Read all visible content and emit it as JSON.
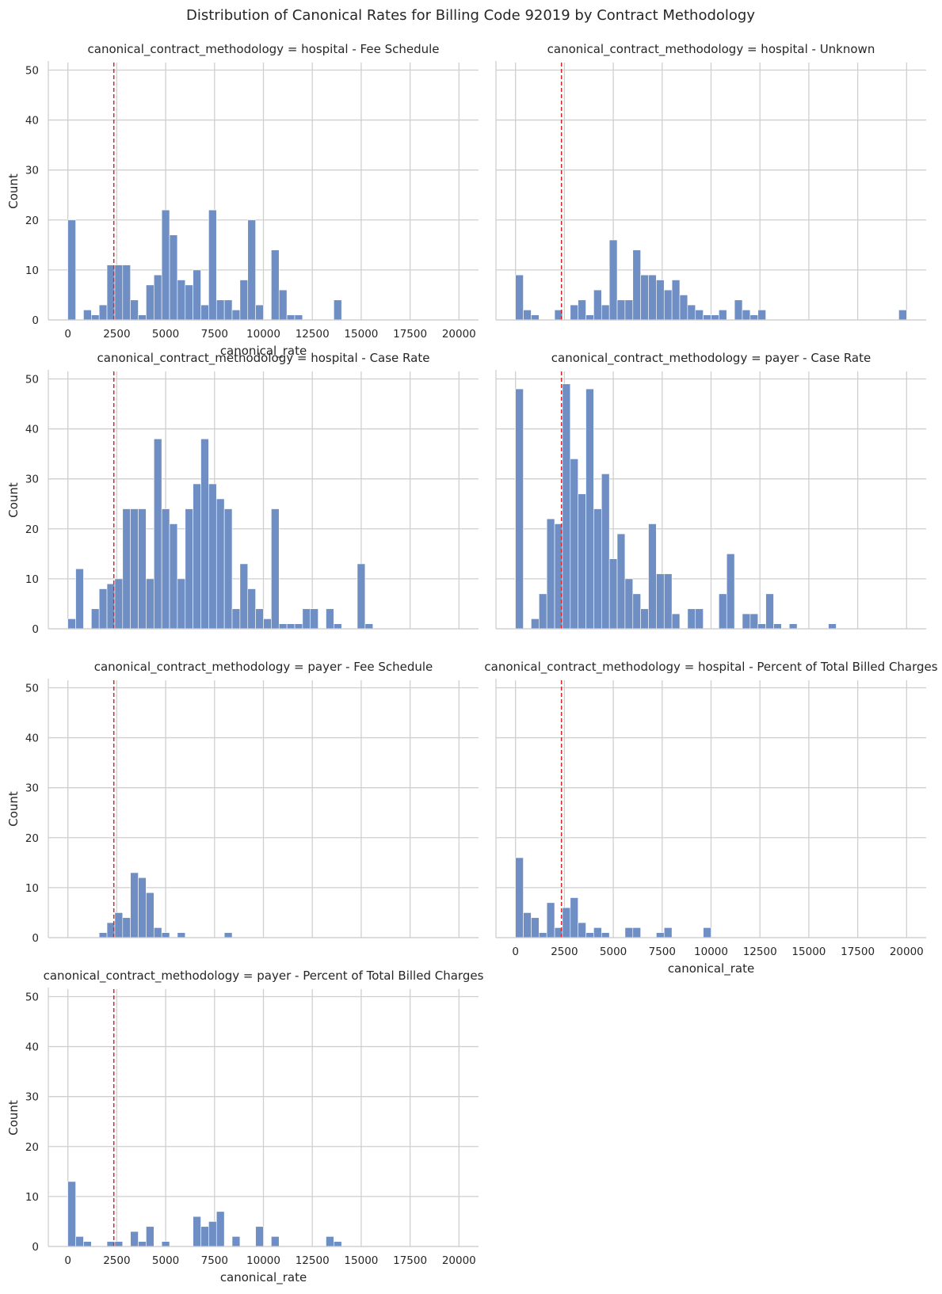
{
  "chart_data": {
    "type": "bar",
    "title": "Distribution of Canonical Rates for Billing Code 92019 by Contract Methodology",
    "xlabel": "canonical_rate",
    "ylabel": "Count",
    "xlim": [
      -1000,
      21000
    ],
    "ylim": [
      0,
      51.5
    ],
    "x_ticks": [
      0,
      2500,
      5000,
      7500,
      10000,
      12500,
      15000,
      17500,
      20000
    ],
    "y_ticks": [
      0,
      10,
      20,
      30,
      40,
      50
    ],
    "bin_width": 400,
    "reference_line_x": 2350,
    "grid": true,
    "panels": [
      {
        "title": "canonical_contract_methodology = hospital - Fee Schedule",
        "bins": [
          [
            0,
            20
          ],
          [
            800,
            2
          ],
          [
            1200,
            1
          ],
          [
            1600,
            3
          ],
          [
            2000,
            11
          ],
          [
            2400,
            11
          ],
          [
            2800,
            11
          ],
          [
            3200,
            4
          ],
          [
            3600,
            1
          ],
          [
            4000,
            7
          ],
          [
            4400,
            9
          ],
          [
            4800,
            22
          ],
          [
            5200,
            17
          ],
          [
            5600,
            8
          ],
          [
            6000,
            7
          ],
          [
            6400,
            10
          ],
          [
            6800,
            3
          ],
          [
            7200,
            22
          ],
          [
            7600,
            4
          ],
          [
            8000,
            4
          ],
          [
            8400,
            2
          ],
          [
            8800,
            8
          ],
          [
            9200,
            20
          ],
          [
            9600,
            3
          ],
          [
            10400,
            14
          ],
          [
            10800,
            6
          ],
          [
            11200,
            1
          ],
          [
            11600,
            1
          ],
          [
            13600,
            4
          ]
        ]
      },
      {
        "title": "canonical_contract_methodology = hospital - Unknown",
        "bins": [
          [
            0,
            9
          ],
          [
            400,
            2
          ],
          [
            800,
            1
          ],
          [
            2000,
            2
          ],
          [
            2800,
            3
          ],
          [
            3200,
            4
          ],
          [
            3600,
            1
          ],
          [
            4000,
            6
          ],
          [
            4400,
            3
          ],
          [
            4800,
            16
          ],
          [
            5200,
            4
          ],
          [
            5600,
            4
          ],
          [
            6000,
            14
          ],
          [
            6400,
            9
          ],
          [
            6800,
            9
          ],
          [
            7200,
            8
          ],
          [
            7600,
            6
          ],
          [
            8000,
            8
          ],
          [
            8400,
            5
          ],
          [
            8800,
            3
          ],
          [
            9200,
            2
          ],
          [
            9600,
            1
          ],
          [
            10000,
            1
          ],
          [
            10400,
            2
          ],
          [
            11200,
            4
          ],
          [
            11600,
            2
          ],
          [
            12000,
            1
          ],
          [
            12400,
            2
          ],
          [
            19600,
            2
          ]
        ]
      },
      {
        "title": "canonical_contract_methodology = hospital - Case Rate",
        "bins": [
          [
            0,
            2
          ],
          [
            400,
            12
          ],
          [
            1200,
            4
          ],
          [
            1600,
            8
          ],
          [
            2000,
            9
          ],
          [
            2400,
            10
          ],
          [
            2800,
            24
          ],
          [
            3200,
            24
          ],
          [
            3600,
            24
          ],
          [
            4000,
            10
          ],
          [
            4400,
            38
          ],
          [
            4800,
            24
          ],
          [
            5200,
            21
          ],
          [
            5600,
            10
          ],
          [
            6000,
            24
          ],
          [
            6400,
            29
          ],
          [
            6800,
            38
          ],
          [
            7200,
            29
          ],
          [
            7600,
            26
          ],
          [
            8000,
            24
          ],
          [
            8400,
            4
          ],
          [
            8800,
            13
          ],
          [
            9200,
            8
          ],
          [
            9600,
            4
          ],
          [
            10000,
            2
          ],
          [
            10400,
            24
          ],
          [
            10800,
            1
          ],
          [
            11200,
            1
          ],
          [
            11600,
            1
          ],
          [
            12000,
            4
          ],
          [
            12400,
            4
          ],
          [
            13200,
            4
          ],
          [
            13600,
            1
          ],
          [
            14800,
            13
          ],
          [
            15200,
            1
          ]
        ]
      },
      {
        "title": "canonical_contract_methodology = payer - Case Rate",
        "bins": [
          [
            0,
            48
          ],
          [
            800,
            2
          ],
          [
            1200,
            7
          ],
          [
            1600,
            22
          ],
          [
            2000,
            21
          ],
          [
            2400,
            49
          ],
          [
            2800,
            34
          ],
          [
            3200,
            27
          ],
          [
            3600,
            48
          ],
          [
            4000,
            24
          ],
          [
            4400,
            31
          ],
          [
            4800,
            14
          ],
          [
            5200,
            19
          ],
          [
            5600,
            10
          ],
          [
            6000,
            7
          ],
          [
            6400,
            4
          ],
          [
            6800,
            21
          ],
          [
            7200,
            11
          ],
          [
            7600,
            11
          ],
          [
            8000,
            3
          ],
          [
            8800,
            4
          ],
          [
            9200,
            4
          ],
          [
            10400,
            7
          ],
          [
            10800,
            15
          ],
          [
            11600,
            3
          ],
          [
            12000,
            3
          ],
          [
            12400,
            1
          ],
          [
            12800,
            7
          ],
          [
            13200,
            1
          ],
          [
            14000,
            1
          ],
          [
            16000,
            1
          ]
        ]
      },
      {
        "title": "canonical_contract_methodology = payer - Fee Schedule",
        "bins": [
          [
            1600,
            1
          ],
          [
            2000,
            3
          ],
          [
            2400,
            5
          ],
          [
            2800,
            4
          ],
          [
            3200,
            13
          ],
          [
            3600,
            12
          ],
          [
            4000,
            9
          ],
          [
            4400,
            2
          ],
          [
            4800,
            1
          ],
          [
            5600,
            1
          ],
          [
            8000,
            1
          ]
        ]
      },
      {
        "title": "canonical_contract_methodology = hospital - Percent of Total Billed Charges",
        "bins": [
          [
            0,
            16
          ],
          [
            400,
            5
          ],
          [
            800,
            4
          ],
          [
            1200,
            1
          ],
          [
            1600,
            7
          ],
          [
            2000,
            2
          ],
          [
            2400,
            6
          ],
          [
            2800,
            8
          ],
          [
            3200,
            3
          ],
          [
            3600,
            1
          ],
          [
            4000,
            2
          ],
          [
            4400,
            1
          ],
          [
            5600,
            2
          ],
          [
            6000,
            2
          ],
          [
            7200,
            1
          ],
          [
            7600,
            2
          ],
          [
            9600,
            2
          ]
        ]
      },
      {
        "title": "canonical_contract_methodology = payer - Percent of Total Billed Charges",
        "bins": [
          [
            0,
            13
          ],
          [
            400,
            2
          ],
          [
            800,
            1
          ],
          [
            2000,
            1
          ],
          [
            2400,
            1
          ],
          [
            3200,
            3
          ],
          [
            3600,
            1
          ],
          [
            4000,
            4
          ],
          [
            4800,
            1
          ],
          [
            6400,
            6
          ],
          [
            6800,
            4
          ],
          [
            7200,
            5
          ],
          [
            7600,
            7
          ],
          [
            8400,
            2
          ],
          [
            9600,
            4
          ],
          [
            10400,
            2
          ],
          [
            13200,
            2
          ],
          [
            13600,
            1
          ]
        ]
      }
    ]
  }
}
